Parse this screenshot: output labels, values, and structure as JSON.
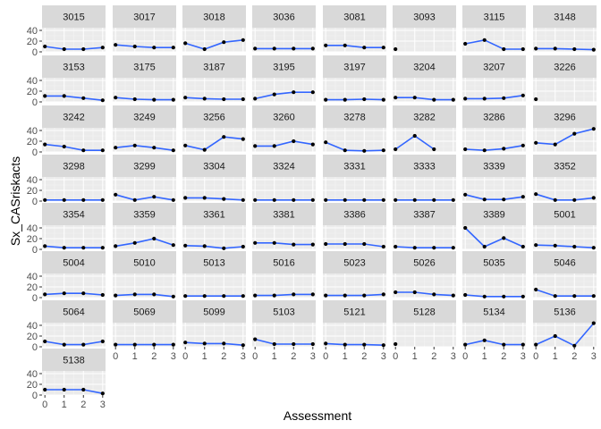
{
  "chart_data": {
    "type": "line",
    "facet_layout": "wrap",
    "xlabel": "Assessment",
    "ylabel": "Sx_CASriskacts",
    "x_ticks": [
      0,
      1,
      2,
      3
    ],
    "y_ticks": [
      0,
      20,
      40
    ],
    "y_tick_labels": [
      "0",
      "20",
      "40"
    ],
    "xlim": [
      0,
      3
    ],
    "ylim": [
      0,
      45
    ],
    "grid": true,
    "colors": {
      "line": "#3366ff",
      "point": "#000000",
      "panel_bg": "#ebebeb",
      "strip_bg": "#d9d9d9",
      "grid_major": "#ffffff",
      "grid_minor": "#f3f3f3"
    },
    "panels": [
      {
        "id": "3015",
        "values": [
          10,
          5,
          5,
          8
        ]
      },
      {
        "id": "3017",
        "values": [
          13,
          10,
          8,
          8
        ]
      },
      {
        "id": "3018",
        "values": [
          16,
          5,
          18,
          22
        ]
      },
      {
        "id": "3036",
        "values": [
          6,
          6,
          6,
          6
        ]
      },
      {
        "id": "3081",
        "values": [
          12,
          12,
          8,
          8
        ]
      },
      {
        "id": "3093",
        "values": [
          5,
          null,
          null,
          null
        ]
      },
      {
        "id": "3115",
        "values": [
          15,
          22,
          5,
          5
        ]
      },
      {
        "id": "3148",
        "values": [
          6,
          6,
          5,
          4
        ]
      },
      {
        "id": "3153",
        "values": [
          11,
          11,
          7,
          3
        ]
      },
      {
        "id": "3175",
        "values": [
          8,
          5,
          4,
          4
        ]
      },
      {
        "id": "3187",
        "values": [
          8,
          6,
          5,
          5
        ]
      },
      {
        "id": "3195",
        "values": [
          6,
          14,
          18,
          18
        ]
      },
      {
        "id": "3197",
        "values": [
          4,
          4,
          5,
          4
        ]
      },
      {
        "id": "3204",
        "values": [
          8,
          8,
          4,
          4
        ]
      },
      {
        "id": "3207",
        "values": [
          6,
          6,
          7,
          12
        ]
      },
      {
        "id": "3226",
        "values": [
          5,
          null,
          null,
          null
        ]
      },
      {
        "id": "3242",
        "values": [
          14,
          10,
          3,
          3
        ]
      },
      {
        "id": "3249",
        "values": [
          8,
          12,
          8,
          3
        ]
      },
      {
        "id": "3256",
        "values": [
          12,
          4,
          28,
          24
        ]
      },
      {
        "id": "3260",
        "values": [
          11,
          11,
          20,
          14
        ]
      },
      {
        "id": "3278",
        "values": [
          18,
          3,
          2,
          3
        ]
      },
      {
        "id": "3282",
        "values": [
          5,
          30,
          5,
          null
        ]
      },
      {
        "id": "3286",
        "values": [
          5,
          3,
          6,
          12
        ]
      },
      {
        "id": "3296",
        "values": [
          17,
          14,
          34,
          43
        ]
      },
      {
        "id": "3298",
        "values": [
          2,
          2,
          2,
          2
        ]
      },
      {
        "id": "3299",
        "values": [
          12,
          2,
          8,
          2
        ]
      },
      {
        "id": "3304",
        "values": [
          6,
          6,
          4,
          2
        ]
      },
      {
        "id": "3324",
        "values": [
          2,
          2,
          2,
          2
        ]
      },
      {
        "id": "3331",
        "values": [
          2,
          2,
          2,
          2
        ]
      },
      {
        "id": "3333",
        "values": [
          2,
          2,
          2,
          2
        ]
      },
      {
        "id": "3339",
        "values": [
          12,
          3,
          3,
          8
        ]
      },
      {
        "id": "3352",
        "values": [
          13,
          2,
          2,
          6
        ]
      },
      {
        "id": "3354",
        "values": [
          6,
          3,
          3,
          3
        ]
      },
      {
        "id": "3359",
        "values": [
          6,
          12,
          20,
          8
        ]
      },
      {
        "id": "3361",
        "values": [
          7,
          6,
          2,
          5
        ]
      },
      {
        "id": "3381",
        "values": [
          12,
          12,
          9,
          9
        ]
      },
      {
        "id": "3386",
        "values": [
          10,
          10,
          10,
          5
        ]
      },
      {
        "id": "3387",
        "values": [
          5,
          3,
          3,
          3
        ]
      },
      {
        "id": "3389",
        "values": [
          40,
          5,
          21,
          5
        ]
      },
      {
        "id": "5001",
        "values": [
          8,
          7,
          5,
          3
        ]
      },
      {
        "id": "5004",
        "values": [
          6,
          8,
          8,
          5
        ]
      },
      {
        "id": "5010",
        "values": [
          4,
          6,
          6,
          2
        ]
      },
      {
        "id": "5013",
        "values": [
          3,
          3,
          3,
          3
        ]
      },
      {
        "id": "5016",
        "values": [
          4,
          4,
          6,
          6
        ]
      },
      {
        "id": "5023",
        "values": [
          4,
          4,
          4,
          6
        ]
      },
      {
        "id": "5026",
        "values": [
          10,
          10,
          6,
          4
        ]
      },
      {
        "id": "5035",
        "values": [
          5,
          2,
          2,
          2
        ]
      },
      {
        "id": "5046",
        "values": [
          15,
          3,
          3,
          3
        ]
      },
      {
        "id": "5064",
        "values": [
          10,
          4,
          4,
          10
        ]
      },
      {
        "id": "5069",
        "values": [
          4,
          4,
          4,
          4
        ]
      },
      {
        "id": "5099",
        "values": [
          8,
          6,
          6,
          3
        ]
      },
      {
        "id": "5103",
        "values": [
          14,
          5,
          5,
          5
        ]
      },
      {
        "id": "5121",
        "values": [
          6,
          4,
          4,
          3
        ]
      },
      {
        "id": "5128",
        "values": [
          5,
          null,
          null,
          null
        ]
      },
      {
        "id": "5134",
        "values": [
          4,
          12,
          4,
          4
        ]
      },
      {
        "id": "5136",
        "values": [
          4,
          20,
          2,
          44
        ]
      },
      {
        "id": "5138",
        "values": [
          10,
          10,
          10,
          3
        ]
      }
    ]
  }
}
